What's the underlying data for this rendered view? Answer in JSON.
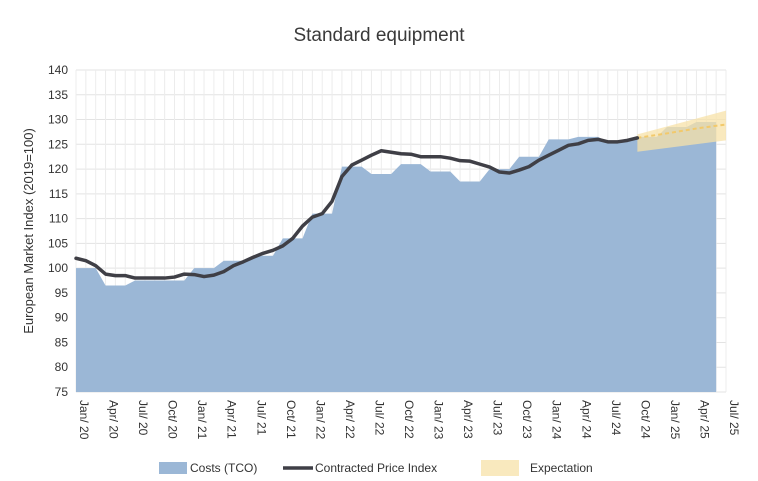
{
  "chart_data": {
    "type": "area",
    "title": "Standard equipment",
    "xlabel": "",
    "ylabel": "European Market Index (2019=100)",
    "ylim": [
      75,
      140
    ],
    "ytick_step": 5,
    "grid": true,
    "legend_position": "bottom",
    "x_ticks": [
      "Jan/ 20",
      "Apr/ 20",
      "Jul/ 20",
      "Oct/ 20",
      "Jan/ 21",
      "Apr/ 21",
      "Jul/ 21",
      "Oct/ 21",
      "Jan/ 22",
      "Apr/ 22",
      "Jul/ 22",
      "Oct/ 22",
      "Jan/ 23",
      "Apr/ 23",
      "Jul/ 23",
      "Oct/ 23",
      "Jan/ 24",
      "Apr/ 24",
      "Jul/ 24",
      "Oct/ 24",
      "Jan/ 25",
      "Apr/ 25",
      "Jul/ 25"
    ],
    "x_range": [
      "2020-01",
      "2025-07"
    ],
    "series": [
      {
        "name": "Costs (TCO)",
        "kind": "area",
        "color": "#9bb7d6",
        "points": [
          [
            "2020-01",
            100
          ],
          [
            "2020-03",
            100
          ],
          [
            "2020-04",
            96.5
          ],
          [
            "2020-06",
            96.5
          ],
          [
            "2020-07",
            97.5
          ],
          [
            "2020-09",
            97.5
          ],
          [
            "2020-10",
            97.5
          ],
          [
            "2020-12",
            97.5
          ],
          [
            "2021-01",
            100
          ],
          [
            "2021-03",
            100
          ],
          [
            "2021-04",
            101.5
          ],
          [
            "2021-06",
            101.5
          ],
          [
            "2021-07",
            102.5
          ],
          [
            "2021-09",
            102.5
          ],
          [
            "2021-10",
            106
          ],
          [
            "2021-12",
            106
          ],
          [
            "2022-01",
            111
          ],
          [
            "2022-03",
            111
          ],
          [
            "2022-04",
            120.5
          ],
          [
            "2022-06",
            120.5
          ],
          [
            "2022-07",
            119
          ],
          [
            "2022-09",
            119
          ],
          [
            "2022-10",
            121
          ],
          [
            "2022-12",
            121
          ],
          [
            "2023-01",
            119.5
          ],
          [
            "2023-03",
            119.5
          ],
          [
            "2023-04",
            117.5
          ],
          [
            "2023-06",
            117.5
          ],
          [
            "2023-07",
            120
          ],
          [
            "2023-09",
            120
          ],
          [
            "2023-10",
            122.5
          ],
          [
            "2023-12",
            122.5
          ],
          [
            "2024-01",
            126
          ],
          [
            "2024-03",
            126
          ],
          [
            "2024-04",
            126.5
          ],
          [
            "2024-06",
            126.5
          ],
          [
            "2024-07",
            125.5
          ],
          [
            "2024-09",
            125.5
          ],
          [
            "2024-10",
            126.5
          ],
          [
            "2024-12",
            126.5
          ],
          [
            "2025-01",
            128.5
          ],
          [
            "2025-03",
            128.5
          ],
          [
            "2025-04",
            129.5
          ],
          [
            "2025-06",
            129.5
          ]
        ]
      },
      {
        "name": "Contracted Price Index",
        "kind": "line",
        "color": "#3f3f46",
        "points": [
          [
            "2020-01",
            102
          ],
          [
            "2020-02",
            101.5
          ],
          [
            "2020-03",
            100.5
          ],
          [
            "2020-04",
            98.8
          ],
          [
            "2020-05",
            98.5
          ],
          [
            "2020-06",
            98.5
          ],
          [
            "2020-07",
            98
          ],
          [
            "2020-08",
            98
          ],
          [
            "2020-09",
            98
          ],
          [
            "2020-10",
            98
          ],
          [
            "2020-11",
            98.2
          ],
          [
            "2020-12",
            98.8
          ],
          [
            "2021-01",
            98.7
          ],
          [
            "2021-02",
            98.3
          ],
          [
            "2021-03",
            98.6
          ],
          [
            "2021-04",
            99.3
          ],
          [
            "2021-05",
            100.5
          ],
          [
            "2021-06",
            101.3
          ],
          [
            "2021-07",
            102.2
          ],
          [
            "2021-08",
            103
          ],
          [
            "2021-09",
            103.6
          ],
          [
            "2021-10",
            104.5
          ],
          [
            "2021-11",
            106
          ],
          [
            "2021-12",
            108.5
          ],
          [
            "2022-01",
            110.3
          ],
          [
            "2022-02",
            111
          ],
          [
            "2022-03",
            113.5
          ],
          [
            "2022-04",
            118.5
          ],
          [
            "2022-05",
            120.8
          ],
          [
            "2022-06",
            121.8
          ],
          [
            "2022-07",
            122.8
          ],
          [
            "2022-08",
            123.7
          ],
          [
            "2022-09",
            123.4
          ],
          [
            "2022-10",
            123.1
          ],
          [
            "2022-11",
            123
          ],
          [
            "2022-12",
            122.5
          ],
          [
            "2023-01",
            122.5
          ],
          [
            "2023-02",
            122.5
          ],
          [
            "2023-03",
            122.2
          ],
          [
            "2023-04",
            121.7
          ],
          [
            "2023-05",
            121.6
          ],
          [
            "2023-06",
            121
          ],
          [
            "2023-07",
            120.4
          ],
          [
            "2023-08",
            119.4
          ],
          [
            "2023-09",
            119.2
          ],
          [
            "2023-10",
            119.8
          ],
          [
            "2023-11",
            120.5
          ],
          [
            "2023-12",
            121.8
          ],
          [
            "2024-01",
            122.8
          ],
          [
            "2024-02",
            123.8
          ],
          [
            "2024-03",
            124.8
          ],
          [
            "2024-04",
            125.1
          ],
          [
            "2024-05",
            125.8
          ],
          [
            "2024-06",
            126
          ],
          [
            "2024-07",
            125.5
          ],
          [
            "2024-08",
            125.5
          ],
          [
            "2024-09",
            125.8
          ],
          [
            "2024-10",
            126.3
          ]
        ]
      },
      {
        "name": "Expectation",
        "kind": "band",
        "color": "#f7e2a8",
        "upper": [
          [
            "2024-10",
            127
          ],
          [
            "2025-07",
            131.8
          ]
        ],
        "lower": [
          [
            "2024-10",
            123.5
          ],
          [
            "2025-07",
            125.8
          ]
        ],
        "forecast_line": [
          [
            "2024-10",
            126.3
          ],
          [
            "2025-01",
            127.2
          ],
          [
            "2025-04",
            128.2
          ],
          [
            "2025-07",
            129
          ]
        ],
        "forecast_line_color": "#f2c96b"
      }
    ],
    "legend": [
      {
        "label": "Costs (TCO)",
        "swatch": "area"
      },
      {
        "label": "Contracted Price Index",
        "swatch": "line"
      },
      {
        "label": "Expectation",
        "swatch": "band"
      }
    ]
  }
}
